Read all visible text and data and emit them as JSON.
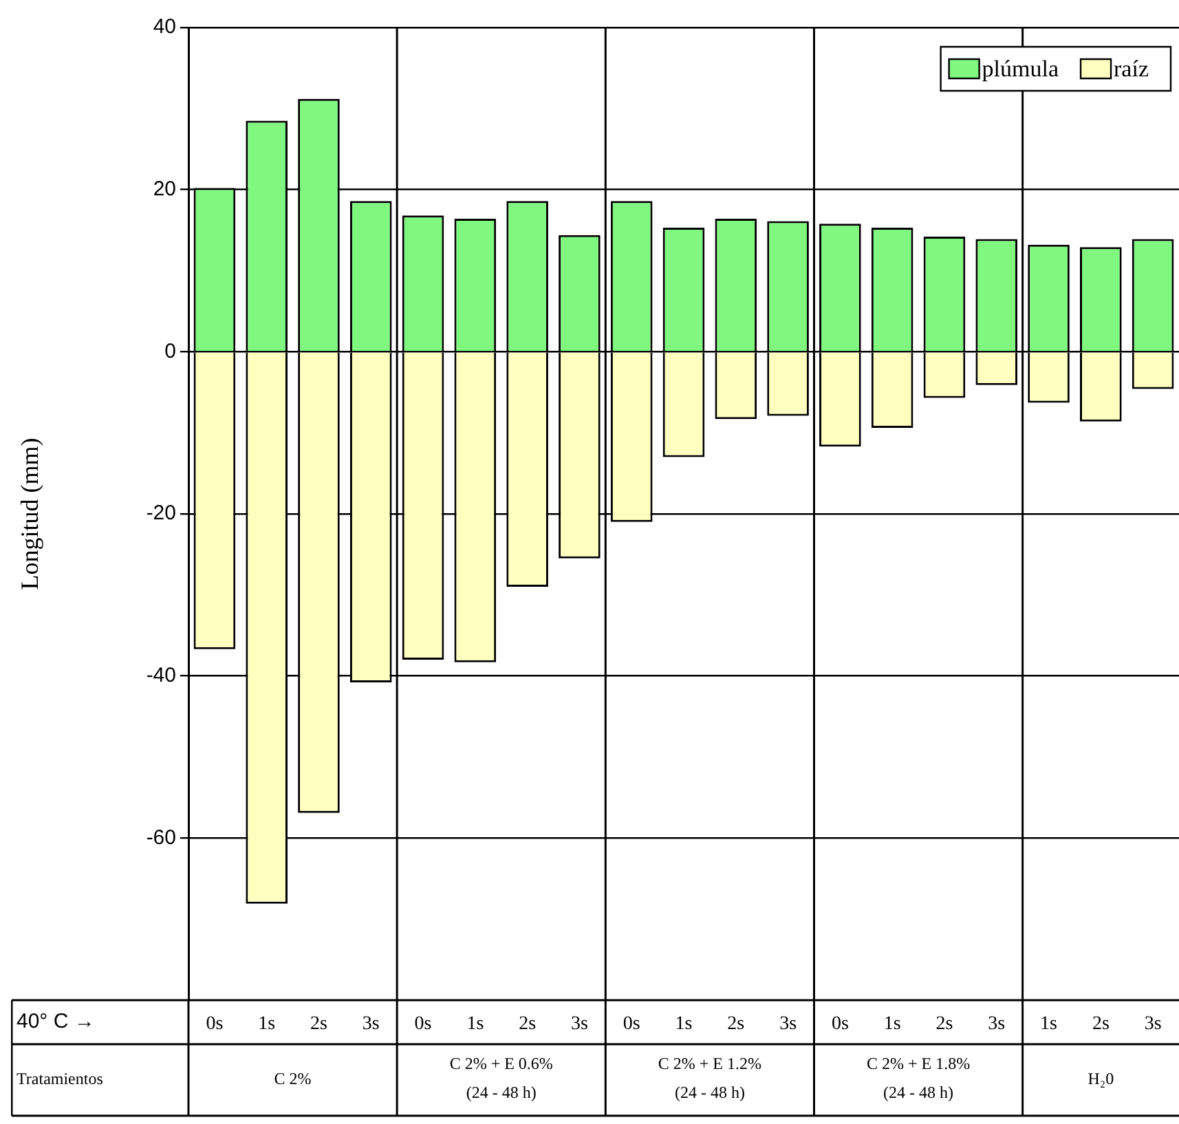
{
  "chart_data": {
    "type": "bar",
    "ylabel": "Longitud (mm)",
    "stacked": true,
    "grid": "y",
    "legend": "top right",
    "categories": [
      "0s",
      "1s",
      "2s",
      "3s",
      "0s",
      "1s",
      "2s",
      "3s",
      "0s",
      "1s",
      "2s",
      "3s",
      "0s",
      "1s",
      "2s",
      "3s",
      "1s",
      "2s",
      "3s"
    ],
    "series": [
      {
        "name": "plúmula",
        "color": "#80f880",
        "values": [
          20.2,
          28.5,
          31.2,
          18.6,
          16.8,
          16.4,
          18.6,
          14.4,
          18.6,
          15.3,
          16.4,
          16.1,
          15.8,
          15.3,
          14.2,
          13.9,
          13.2,
          12.9,
          13.9
        ]
      },
      {
        "name": "raíz",
        "color": "#ffffc0",
        "values": [
          -36.7,
          -68.1,
          -56.9,
          -40.8,
          -38.0,
          -38.3,
          -29.0,
          -25.5,
          -21.0,
          -13.0,
          -8.3,
          -7.9,
          -11.7,
          -9.4,
          -5.7,
          -4.1,
          -6.3,
          -8.6,
          -4.6
        ]
      }
    ],
    "ylim": [
      -80,
      40
    ],
    "yticks": [
      -60,
      -40,
      -20,
      0,
      20,
      40
    ],
    "annotations": [
      "40° C →",
      "Tratamientos",
      "C 2%",
      "C 2% + E 0.6% (24 - 48 h)",
      "C 2% + E 1.2% (24 - 48 h)",
      "C 2% + E 1.8% (24 - 48 h)",
      "H₂0"
    ]
  }
}
